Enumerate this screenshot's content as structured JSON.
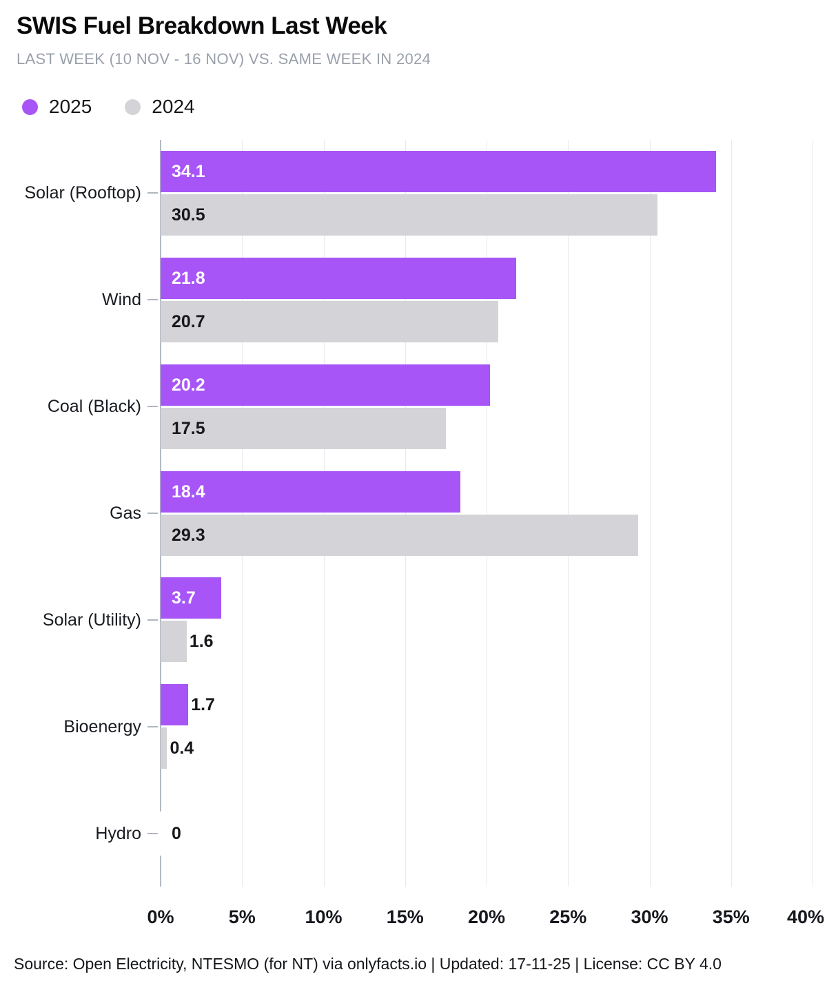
{
  "header": {
    "title": "SWIS Fuel Breakdown Last Week",
    "subtitle": "LAST WEEK (10 NOV - 16 NOV) VS. SAME WEEK IN 2024"
  },
  "legend": [
    {
      "label": "2025",
      "color": "#a855f7"
    },
    {
      "label": "2024",
      "color": "#d4d4d8"
    }
  ],
  "chart_data": {
    "type": "bar",
    "orientation": "horizontal",
    "title": "SWIS Fuel Breakdown Last Week",
    "categories": [
      "Solar (Rooftop)",
      "Wind",
      "Coal (Black)",
      "Gas",
      "Solar (Utility)",
      "Bioenergy",
      "Hydro"
    ],
    "series": [
      {
        "name": "2025",
        "color": "#a855f7",
        "inside_label_color": "#ffffff",
        "values": [
          34.1,
          21.8,
          20.2,
          18.4,
          3.7,
          1.7,
          0
        ]
      },
      {
        "name": "2024",
        "color": "#d4d4d8",
        "inside_label_color": "#18181b",
        "values": [
          30.5,
          20.7,
          17.5,
          29.3,
          1.6,
          0.4,
          0
        ]
      }
    ],
    "xlim": [
      0,
      40
    ],
    "xtick_labels": [
      "0%",
      "5%",
      "10%",
      "15%",
      "20%",
      "25%",
      "30%",
      "35%",
      "40%"
    ],
    "grid": "vertical",
    "legend_position": "top-left",
    "value_label_format": "one_decimal"
  },
  "footer": {
    "text": "Source: Open Electricity, NTESMO (for NT) via onlyfacts.io | Updated: 17-11-25 | License: CC BY 4.0"
  }
}
